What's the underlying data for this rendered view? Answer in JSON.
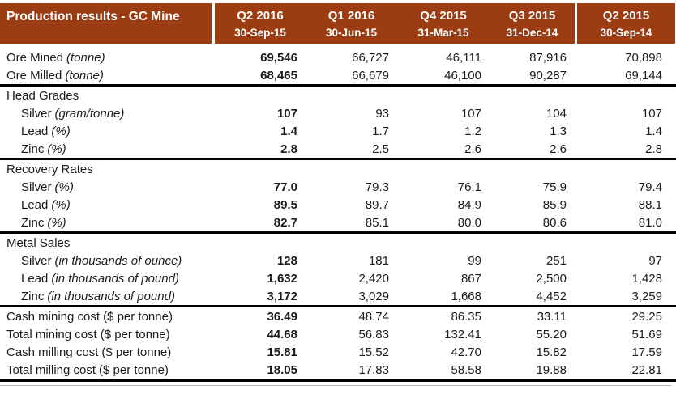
{
  "title": "Production results - GC Mine",
  "colors": {
    "header_bg": "#9B3C12",
    "header_text": "#FFFFFF",
    "rule": "#000000",
    "thin_rule": "#B3B3B3"
  },
  "columns": [
    {
      "quarter": "Q2 2016",
      "date": "30-Sep-15"
    },
    {
      "quarter": "Q1 2016",
      "date": "30-Jun-15"
    },
    {
      "quarter": "Q4 2015",
      "date": "31-Mar-15"
    },
    {
      "quarter": "Q3 2015",
      "date": "31-Dec-14"
    },
    {
      "quarter": "Q2 2015",
      "date": "30-Sep-14",
      "sep_before": true
    }
  ],
  "rows": [
    {
      "label": "Ore Mined",
      "unit": "(tonne)",
      "unit_italic": true,
      "indent": 0,
      "values": [
        "69,546",
        "66,727",
        "46,111",
        "87,916",
        "70,898"
      ]
    },
    {
      "label": "Ore Milled",
      "unit": "(tonne)",
      "unit_italic": true,
      "indent": 0,
      "values": [
        "68,465",
        "66,679",
        "46,100",
        "90,287",
        "69,144"
      ]
    },
    {
      "label": "Head Grades",
      "section": true,
      "line_above": true
    },
    {
      "label": "Silver",
      "unit": "(gram/tonne)",
      "unit_italic": true,
      "indent": 1,
      "values": [
        "107",
        "93",
        "107",
        "104",
        "107"
      ]
    },
    {
      "label": "Lead",
      "unit": "(%)",
      "unit_italic": true,
      "indent": 1,
      "values": [
        "1.4",
        "1.7",
        "1.2",
        "1.3",
        "1.4"
      ]
    },
    {
      "label": "Zinc",
      "unit": "(%)",
      "unit_italic": true,
      "indent": 1,
      "values": [
        "2.8",
        "2.5",
        "2.6",
        "2.6",
        "2.8"
      ]
    },
    {
      "label": "Recovery Rates",
      "section": true,
      "line_above": true
    },
    {
      "label": "Silver",
      "unit": "(%)",
      "unit_italic": true,
      "indent": 1,
      "values": [
        "77.0",
        "79.3",
        "76.1",
        "75.9",
        "79.4"
      ]
    },
    {
      "label": "Lead",
      "unit": "(%)",
      "unit_italic": true,
      "indent": 1,
      "values": [
        "89.5",
        "89.7",
        "84.9",
        "85.9",
        "88.1"
      ]
    },
    {
      "label": "Zinc",
      "unit": "(%)",
      "unit_italic": true,
      "indent": 1,
      "values": [
        "82.7",
        "85.1",
        "80.0",
        "80.6",
        "81.0"
      ]
    },
    {
      "label": "Metal Sales",
      "section": true,
      "line_above": true
    },
    {
      "label": "Silver",
      "unit": "(in thousands of ounce)",
      "unit_italic": true,
      "indent": 1,
      "values": [
        "128",
        "181",
        "99",
        "251",
        "97"
      ]
    },
    {
      "label": "Lead",
      "unit": "(in thousands of pound)",
      "unit_italic": true,
      "indent": 1,
      "values": [
        "1,632",
        "2,420",
        "867",
        "2,500",
        "1,428"
      ]
    },
    {
      "label": "Zinc",
      "unit": "(in thousands of pound)",
      "unit_italic": true,
      "indent": 1,
      "values": [
        "3,172",
        "3,029",
        "1,668",
        "4,452",
        "3,259"
      ]
    },
    {
      "label": "Cash mining cost",
      "unit": "($ per tonne)",
      "unit_italic": false,
      "indent": 0,
      "line_above": true,
      "values": [
        "36.49",
        "48.74",
        "86.35",
        "33.11",
        "29.25"
      ]
    },
    {
      "label": "Total mining cost",
      "unit": "($ per tonne)",
      "unit_italic": false,
      "indent": 0,
      "values": [
        "44.68",
        "56.83",
        "132.41",
        "55.20",
        "51.69"
      ]
    },
    {
      "label": "Cash milling cost",
      "unit": "($ per tonne)",
      "unit_italic": false,
      "indent": 0,
      "values": [
        "15.81",
        "15.52",
        "42.70",
        "15.82",
        "17.59"
      ]
    },
    {
      "label": "Total milling cost",
      "unit": "($ per tonne)",
      "unit_italic": false,
      "indent": 0,
      "values": [
        "18.05",
        "17.83",
        "58.58",
        "19.88",
        "22.81"
      ]
    }
  ]
}
